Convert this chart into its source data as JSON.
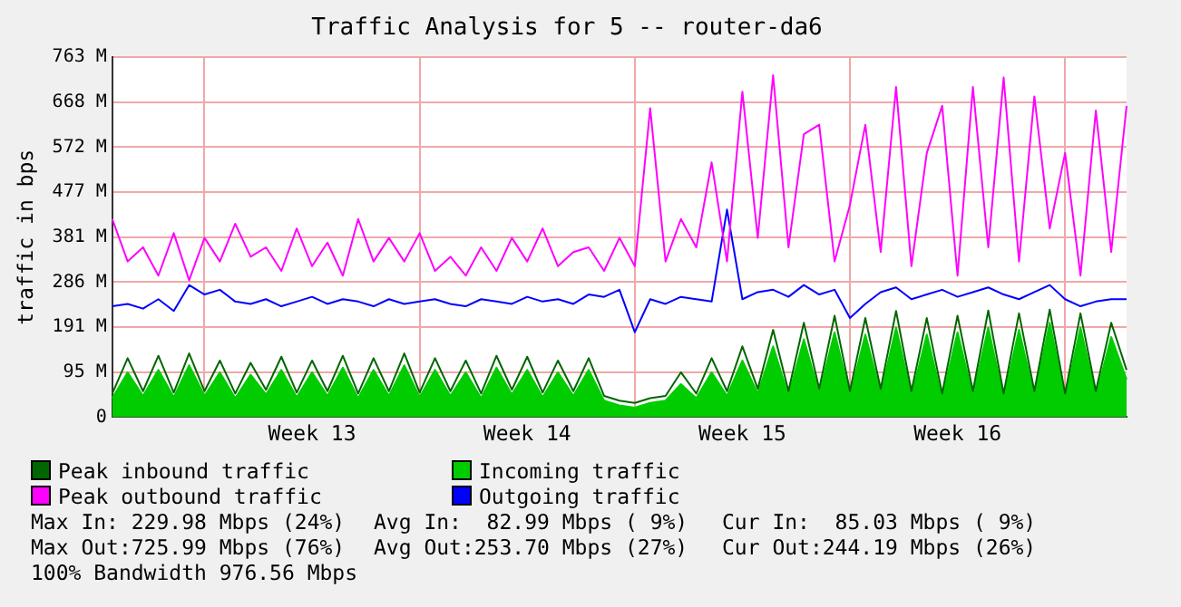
{
  "chart_data": {
    "type": "line",
    "title": "Traffic Analysis for 5 -- router-da6",
    "ylabel": "traffic in bps",
    "categories": [
      null,
      null,
      null,
      null,
      null,
      null,
      null,
      null,
      null,
      null,
      null,
      null,
      null,
      "Week 13",
      null,
      null,
      null,
      null,
      null,
      null,
      null,
      null,
      null,
      null,
      null,
      null,
      null,
      "Week 14",
      null,
      null,
      null,
      null,
      null,
      null,
      null,
      null,
      null,
      null,
      null,
      null,
      null,
      "Week 15",
      null,
      null,
      null,
      null,
      null,
      null,
      null,
      null,
      null,
      null,
      null,
      null,
      null,
      "Week 16",
      null,
      null,
      null,
      null,
      null,
      null,
      null,
      null,
      null,
      null,
      null
    ],
    "ylim": [
      0,
      763
    ],
    "yticks": [
      0,
      {
        "value": 95.4,
        "label": "95 M"
      },
      {
        "value": 190.8,
        "label": "191 M"
      },
      {
        "value": 286.1,
        "label": "286 M"
      },
      {
        "value": 381.5,
        "label": "381 M"
      },
      {
        "value": 476.9,
        "label": "477 M"
      },
      {
        "value": 572.3,
        "label": "572 M"
      },
      {
        "value": 667.6,
        "label": "668 M"
      },
      {
        "value": 763,
        "label": "763 M"
      }
    ],
    "grid": true,
    "legend": "bottom",
    "series": [
      {
        "name": "Peak inbound traffic",
        "type": "line",
        "color": "#006600",
        "values": [
          50,
          125,
          55,
          130,
          52,
          135,
          55,
          120,
          50,
          115,
          58,
          128,
          52,
          120,
          55,
          130,
          50,
          125,
          55,
          135,
          52,
          125,
          55,
          120,
          50,
          130,
          58,
          128,
          52,
          120,
          55,
          125,
          45,
          35,
          30,
          40,
          45,
          95,
          50,
          125,
          55,
          150,
          60,
          185,
          55,
          200,
          60,
          215,
          55,
          210,
          60,
          225,
          55,
          210,
          50,
          215,
          55,
          226,
          50,
          220,
          55,
          228,
          50,
          220,
          55,
          200,
          100
        ]
      },
      {
        "name": "Incoming traffic",
        "type": "area",
        "color": "#00cc00",
        "values": [
          40,
          95,
          45,
          100,
          42,
          110,
          45,
          95,
          40,
          90,
          48,
          100,
          42,
          95,
          45,
          105,
          40,
          100,
          45,
          110,
          42,
          100,
          45,
          95,
          40,
          105,
          48,
          100,
          42,
          95,
          45,
          100,
          35,
          25,
          20,
          30,
          35,
          70,
          40,
          95,
          45,
          120,
          50,
          150,
          45,
          165,
          50,
          180,
          45,
          175,
          50,
          190,
          45,
          175,
          40,
          180,
          45,
          190,
          40,
          185,
          45,
          200,
          40,
          190,
          45,
          170,
          80
        ]
      },
      {
        "name": "Peak outbound traffic",
        "type": "line",
        "color": "#ff00ff",
        "values": [
          420,
          330,
          360,
          300,
          390,
          290,
          380,
          330,
          410,
          340,
          360,
          310,
          400,
          320,
          370,
          300,
          420,
          330,
          380,
          330,
          390,
          310,
          340,
          300,
          360,
          310,
          380,
          330,
          400,
          320,
          350,
          360,
          310,
          380,
          320,
          655,
          330,
          420,
          360,
          540,
          330,
          690,
          380,
          725,
          360,
          600,
          620,
          330,
          450,
          620,
          350,
          700,
          320,
          560,
          660,
          300,
          700,
          360,
          720,
          330,
          680,
          400,
          560,
          300,
          650,
          350,
          660
        ]
      },
      {
        "name": "Outgoing traffic",
        "type": "line",
        "color": "#0000ff",
        "values": [
          235,
          240,
          230,
          250,
          225,
          280,
          260,
          270,
          245,
          240,
          250,
          235,
          245,
          255,
          240,
          250,
          245,
          235,
          250,
          240,
          245,
          250,
          240,
          235,
          250,
          245,
          240,
          255,
          245,
          250,
          240,
          260,
          255,
          270,
          180,
          250,
          240,
          255,
          250,
          245,
          440,
          250,
          265,
          270,
          255,
          280,
          260,
          270,
          210,
          240,
          265,
          275,
          250,
          260,
          270,
          255,
          265,
          275,
          260,
          250,
          265,
          280,
          250,
          235,
          245,
          250,
          250
        ]
      }
    ],
    "annotations": [
      "Max In: 229.98 Mbps (24%)",
      "Avg In:  82.99 Mbps ( 9%)",
      "Cur In:  85.03 Mbps ( 9%)",
      "Max Out:725.99 Mbps (76%)",
      "Avg Out:253.70 Mbps (27%)",
      "Cur Out:244.19 Mbps (26%)",
      "100% Bandwidth 976.56 Mbps"
    ]
  }
}
